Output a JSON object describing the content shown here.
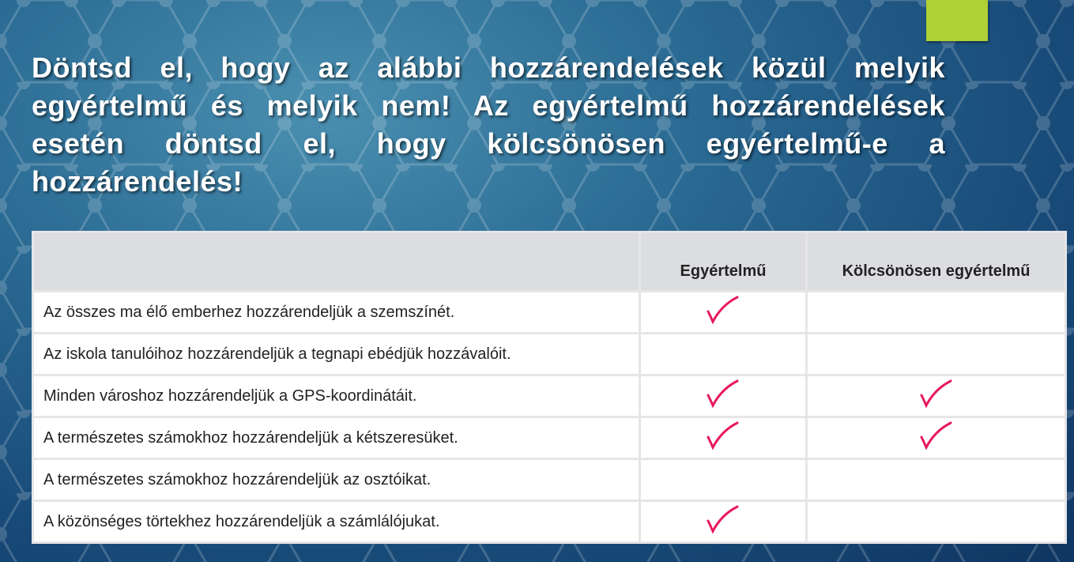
{
  "colors": {
    "accent": "#aed136",
    "check": "#e8185f",
    "header_bg": "#dcdde0"
  },
  "title": "Döntsd el, hogy az alábbi hozzárendelések közül melyik egyértelmű és melyik nem! Az egyértelmű hozzárendelések esetén döntsd el, hogy kölcsönösen egyértelmű-e a hozzárendelés!",
  "table": {
    "headers": [
      "",
      "Egyértelmű",
      "Kölcsönösen egyértelmű"
    ],
    "rows": [
      {
        "label": "Az összes ma élő emberhez hozzárendeljük a szemszínét.",
        "egyertelmu": true,
        "kolcsonosen": false
      },
      {
        "label": "Az iskola tanulóihoz hozzárendeljük a tegnapi ebédjük hozzávalóit.",
        "egyertelmu": false,
        "kolcsonosen": false
      },
      {
        "label": "Minden városhoz hozzárendeljük a GPS-koordinátáit.",
        "egyertelmu": true,
        "kolcsonosen": true
      },
      {
        "label": "A természetes számokhoz hozzárendeljük a kétszeresüket.",
        "egyertelmu": true,
        "kolcsonosen": true
      },
      {
        "label": "A természetes számokhoz hozzárendeljük az osztóikat.",
        "egyertelmu": false,
        "kolcsonosen": false
      },
      {
        "label": "A közönséges törtekhez hozzárendeljük a számlálójukat.",
        "egyertelmu": true,
        "kolcsonosen": false
      }
    ]
  },
  "icons": {
    "check": "checkmark-icon"
  }
}
